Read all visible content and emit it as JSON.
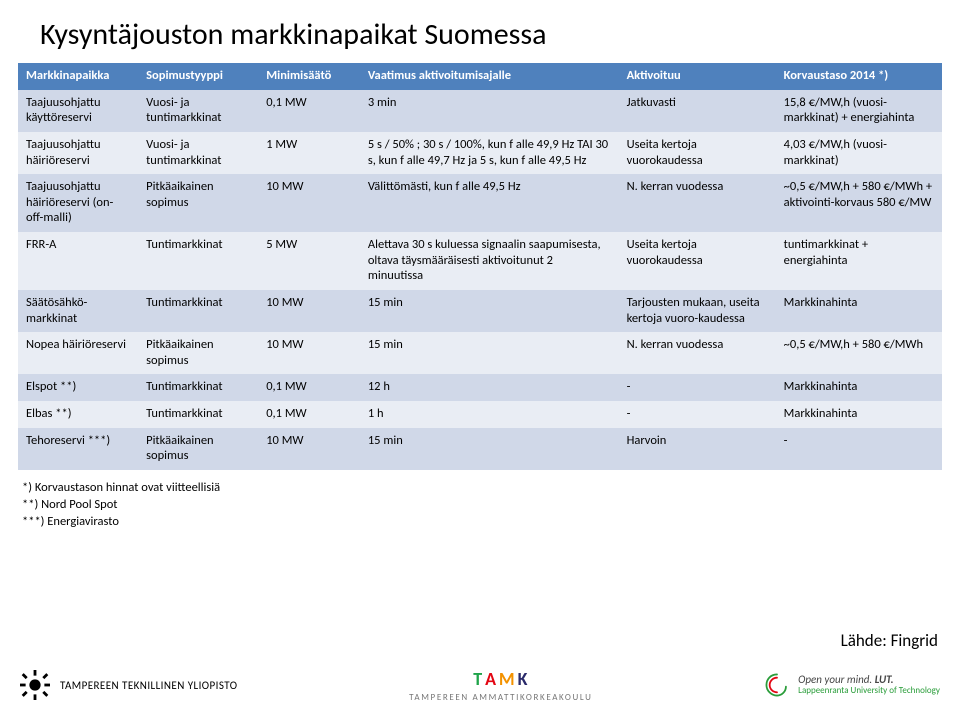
{
  "title": "Kysyntäjouston markkinapaikat Suomessa",
  "table": {
    "header_bg": "#4f81bd",
    "header_fg": "#ffffff",
    "stripe_bg": "#d0d8e8",
    "plain_bg": "#e9edf4",
    "columns": [
      "Markkinapaikka",
      "Sopimustyyppi",
      "Minimisäätö",
      "Vaatimus aktivoitumisajalle",
      "Aktivoituu",
      "Korvaustaso 2014 *)"
    ],
    "rows": [
      [
        "Taajuusohjattu käyttöreservi",
        "Vuosi- ja tuntimarkkinat",
        "0,1 MW",
        "3 min",
        "Jatkuvasti",
        "15,8 €/MW,h (vuosi-markkinat) + energiahinta"
      ],
      [
        "Taajuusohjattu häiriöreservi",
        "Vuosi- ja tuntimarkkinat",
        "1 MW",
        "5 s / 50% ; 30 s / 100%, kun f alle 49,9 Hz TAI 30 s, kun f alle 49,7 Hz ja 5 s, kun f alle 49,5 Hz",
        "Useita kertoja vuorokaudessa",
        "4,03 €/MW,h (vuosi-markkinat)"
      ],
      [
        "Taajuusohjattu häiriöreservi (on-off-malli)",
        "Pitkäaikainen sopimus",
        "10 MW",
        "Välittömästi, kun f alle 49,5 Hz",
        "N. kerran vuodessa",
        "~0,5 €/MW,h + 580 €/MWh + aktivointi-korvaus 580 €/MW"
      ],
      [
        "FRR-A",
        "Tuntimarkkinat",
        "5 MW",
        "Alettava 30 s kuluessa signaalin saapumisesta, oltava täysmääräisesti aktivoitunut 2 minuutissa",
        "Useita kertoja vuorokaudessa",
        "tuntimarkkinat + energiahinta"
      ],
      [
        "Säätösähkö-markkinat",
        "Tuntimarkkinat",
        "10 MW",
        "15 min",
        "Tarjousten mukaan, useita kertoja vuoro-kaudessa",
        "Markkinahinta"
      ],
      [
        "Nopea häiriöreservi",
        "Pitkäaikainen sopimus",
        "10 MW",
        "15 min",
        "N. kerran vuodessa",
        "~0,5 €/MW,h + 580 €/MWh"
      ],
      [
        "Elspot **)",
        "Tuntimarkkinat",
        "0,1 MW",
        "12 h",
        "-",
        "Markkinahinta"
      ],
      [
        "Elbas **)",
        "Tuntimarkkinat",
        "0,1 MW",
        "1 h",
        "-",
        "Markkinahinta"
      ],
      [
        "Tehoreservi ***)",
        "Pitkäaikainen sopimus",
        "10 MW",
        "15 min",
        "Harvoin",
        "-"
      ]
    ]
  },
  "footnotes": [
    "*) Korvaustason hinnat ovat viitteellisiä",
    "**) Nord Pool Spot",
    "***) Energiavirasto"
  ],
  "source": "Lähde: Fingrid",
  "logos": {
    "left": "TAMPEREEN TEKNILLINEN YLIOPISTO",
    "mid_sub": "TAMPEREEN AMMATTIKORKEAKOULU",
    "right_l1": "Open your mind.",
    "right_l2": "Lappeenranta University of Technology",
    "right_brand": "LUT."
  }
}
